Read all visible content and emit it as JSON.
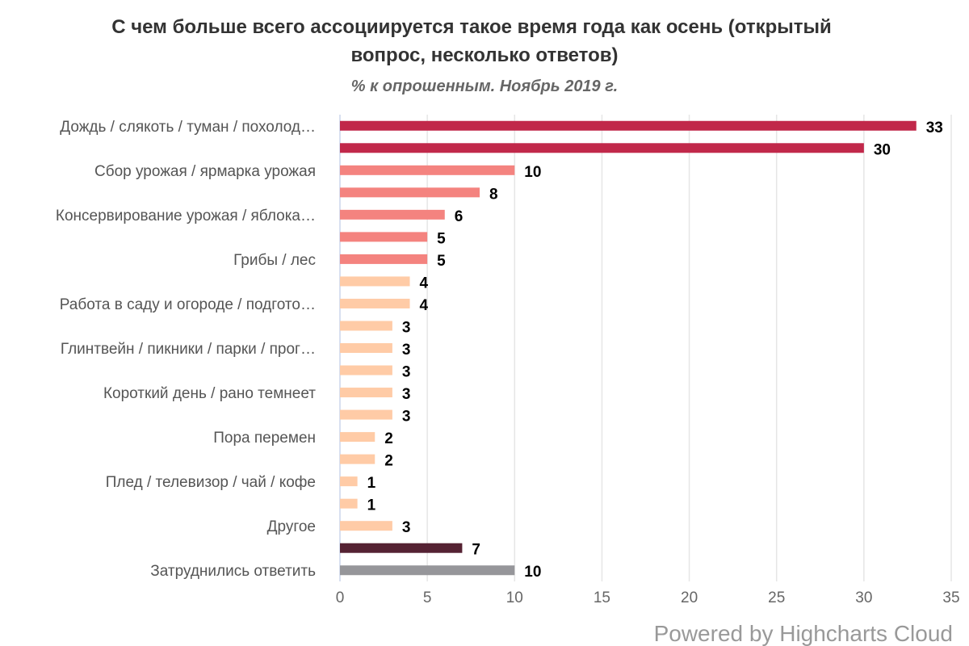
{
  "chart_data": {
    "type": "bar",
    "orientation": "horizontal",
    "title": "С чем больше всего ассоциируется такое время года как осень (открытый вопрос, несколько ответов)",
    "title_lines": [
      "С чем больше всего ассоциируется такое время года как осень (открытый",
      "вопрос, несколько ответов)"
    ],
    "subtitle": "% к опрошенным. Ноябрь 2019 г.",
    "categories": [
      "Дождь / слякоть / туман / похолод…",
      "",
      "Сбор урожая / ярмарка урожая",
      "",
      "Консервирование урожая / яблока…",
      "",
      "Грибы / лес",
      "",
      "Работа в саду и огороде / подгото…",
      "",
      "Глинтвейн / пикники / парки / прог…",
      "",
      "Короткий день / рано темнеет",
      "",
      "Пора перемен",
      "",
      "Плед / телевизор / чай / кофе",
      "",
      "Другое",
      "",
      "Затруднились ответить"
    ],
    "values": [
      33,
      30,
      10,
      8,
      6,
      5,
      5,
      4,
      4,
      3,
      3,
      3,
      3,
      3,
      2,
      2,
      1,
      1,
      3,
      7,
      10
    ],
    "colors": [
      "#C1284A",
      "#C1284A",
      "#F4837F",
      "#F4837F",
      "#F4837F",
      "#F4837F",
      "#F4837F",
      "#FFCBA6",
      "#FFCBA6",
      "#FFCBA6",
      "#FFCBA6",
      "#FFCBA6",
      "#FFCBA6",
      "#FFCBA6",
      "#FFCBA6",
      "#FFCBA6",
      "#FFCBA6",
      "#FFCBA6",
      "#FFCBA6",
      "#552233",
      "#96969A"
    ],
    "xlim": [
      0,
      35
    ],
    "xticks": [
      0,
      5,
      10,
      15,
      20,
      25,
      30,
      35
    ],
    "grid": true,
    "data_labels": true,
    "legend": "none"
  },
  "credit": "Powered by Highcharts Cloud"
}
